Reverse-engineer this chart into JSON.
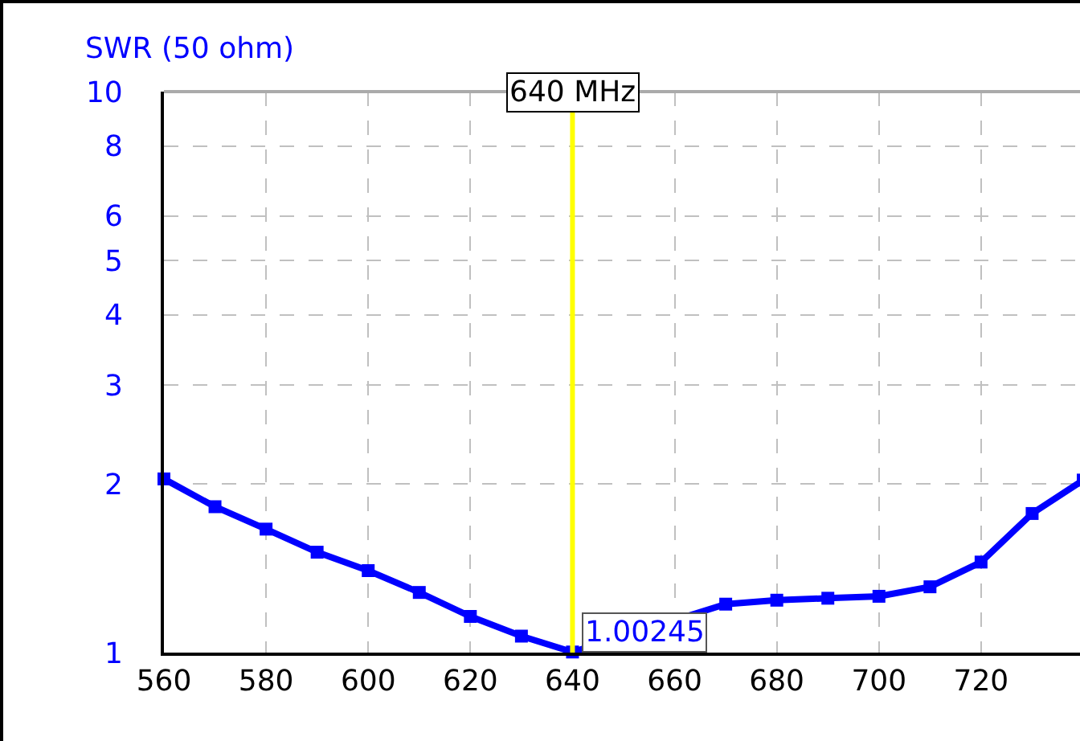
{
  "chart_data": {
    "type": "line",
    "ylabel": "SWR (50 ohm)",
    "x": [
      560,
      570,
      580,
      590,
      600,
      610,
      620,
      630,
      640,
      670,
      680,
      690,
      700,
      710,
      720,
      730,
      740
    ],
    "series": [
      {
        "color": "#0000ff",
        "values": [
          2.04,
          1.82,
          1.66,
          1.51,
          1.4,
          1.28,
          1.16,
          1.07,
          1.00245,
          1.22,
          1.24,
          1.25,
          1.26,
          1.31,
          1.45,
          1.77,
          2.03
        ]
      }
    ],
    "xlim": [
      560,
      740
    ],
    "xticks": [
      560,
      580,
      600,
      620,
      640,
      660,
      680,
      700,
      720
    ],
    "ylim": [
      1,
      10
    ],
    "yticks": [
      1,
      2,
      3,
      4,
      5,
      6,
      8,
      10
    ],
    "log": "y",
    "grid": true,
    "marker": "square",
    "line_style": "solid",
    "ref_lines": [
      {
        "axis": "x",
        "value": 640,
        "label": "640 MHz",
        "color": "#ffff00"
      }
    ],
    "annotations": [
      {
        "text": "1.00245",
        "x": 640,
        "y": 1.00245
      }
    ]
  }
}
